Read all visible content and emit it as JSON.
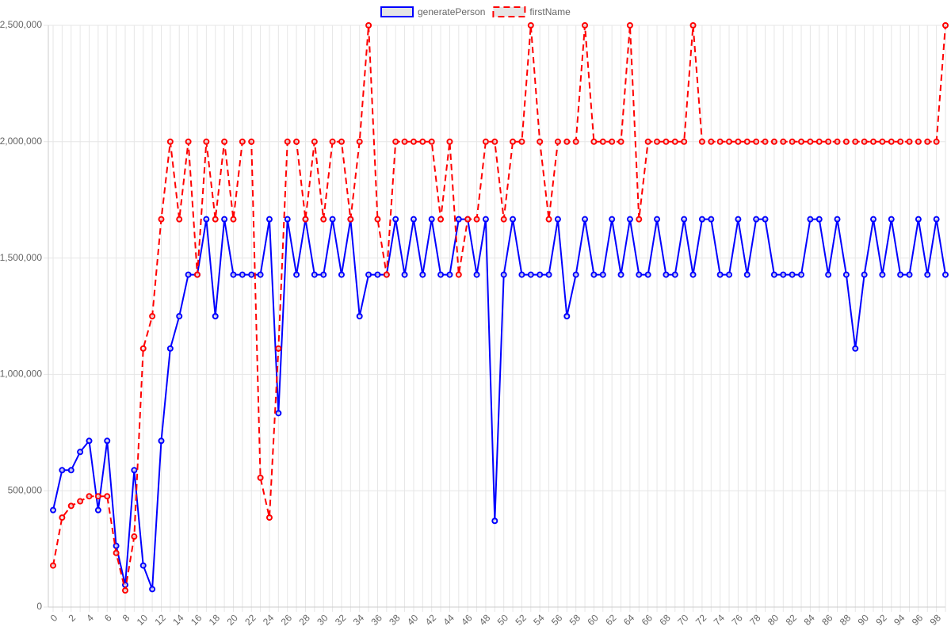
{
  "chart_data": {
    "type": "line",
    "categories": [
      0,
      null,
      2,
      null,
      4,
      null,
      6,
      null,
      8,
      null,
      10,
      null,
      12,
      null,
      14,
      null,
      16,
      null,
      18,
      null,
      20,
      null,
      22,
      null,
      24,
      null,
      26,
      null,
      28,
      null,
      30,
      null,
      32,
      null,
      34,
      null,
      36,
      null,
      38,
      null,
      40,
      null,
      42,
      null,
      44,
      null,
      46,
      null,
      48,
      null,
      50,
      null,
      52,
      null,
      54,
      null,
      56,
      null,
      58,
      null,
      60,
      null,
      62,
      null,
      64,
      null,
      66,
      null,
      68,
      null,
      70,
      null,
      72,
      null,
      74,
      null,
      76,
      null,
      78,
      null,
      80,
      null,
      82,
      null,
      84,
      null,
      86,
      null,
      88,
      null,
      90,
      null,
      92,
      null,
      94,
      null,
      96,
      null,
      98,
      null
    ],
    "series": [
      {
        "name": "generatePerson",
        "color": "#0000ff",
        "dashed": false,
        "values": [
          416667,
          588235,
          588235,
          666667,
          714286,
          416667,
          714286,
          263158,
          95238,
          588235,
          178571,
          76923,
          714286,
          1111111,
          1250000,
          1428571,
          1428571,
          1666667,
          1250000,
          1666667,
          1428571,
          1428571,
          1428571,
          1428571,
          1666667,
          833333,
          1666667,
          1428571,
          1666667,
          1428571,
          1428571,
          1666667,
          1428571,
          1666667,
          1250000,
          1428571,
          1428571,
          1428571,
          1666667,
          1428571,
          1666667,
          1428571,
          1666667,
          1428571,
          1428571,
          1666667,
          1666667,
          1428571,
          1666667,
          370370,
          1428571,
          1666667,
          1428571,
          1428571,
          1428571,
          1428571,
          1666667,
          1250000,
          1428571,
          1666667,
          1428571,
          1428571,
          1666667,
          1428571,
          1666667,
          1428571,
          1428571,
          1666667,
          1428571,
          1428571,
          1666667,
          1428571,
          1666667,
          1666667,
          1428571,
          1428571,
          1666667,
          1428571,
          1666667,
          1666667,
          1428571,
          1428571,
          1428571,
          1428571,
          1666667,
          1666667,
          1428571,
          1666667,
          1428571,
          1111111,
          1428571,
          1666667,
          1428571,
          1666667,
          1428571,
          1428571,
          1666667,
          1428571,
          1666667,
          1428571
        ]
      },
      {
        "name": "firstName",
        "color": "#ff0000",
        "dashed": true,
        "values": [
          178571,
          384615,
          434783,
          454545,
          476190,
          476190,
          476190,
          232558,
          71429,
          303030,
          1111111,
          1250000,
          1666667,
          2000000,
          1666667,
          2000000,
          1428571,
          2000000,
          1666667,
          2000000,
          1666667,
          2000000,
          2000000,
          555556,
          384615,
          1111111,
          2000000,
          2000000,
          1666667,
          2000000,
          1666667,
          2000000,
          2000000,
          1666667,
          2000000,
          2500000,
          1666667,
          1428571,
          2000000,
          2000000,
          2000000,
          2000000,
          2000000,
          1666667,
          2000000,
          1428571,
          1666667,
          1666667,
          2000000,
          2000000,
          1666667,
          2000000,
          2000000,
          2500000,
          2000000,
          1666667,
          2000000,
          2000000,
          2000000,
          2500000,
          2000000,
          2000000,
          2000000,
          2000000,
          2500000,
          1666667,
          2000000,
          2000000,
          2000000,
          2000000,
          2000000,
          2500000,
          2000000,
          2000000,
          2000000,
          2000000,
          2000000,
          2000000,
          2000000,
          2000000,
          2000000,
          2000000,
          2000000,
          2000000,
          2000000,
          2000000,
          2000000,
          2000000,
          2000000,
          2000000,
          2000000,
          2000000,
          2000000,
          2000000,
          2000000,
          2000000,
          2000000,
          2000000,
          2000000,
          2500000
        ]
      }
    ],
    "ylim": [
      0,
      2500000
    ],
    "yticks": [
      0,
      {
        "value": 500000,
        "label": "500,000"
      },
      {
        "value": 1000000,
        "label": "1,000,000"
      },
      {
        "value": 1500000,
        "label": "1,500,000"
      },
      {
        "value": 2000000,
        "label": "2,000,000"
      },
      {
        "value": 2500000,
        "label": "2,500,000"
      }
    ],
    "grid": true,
    "legend": "top"
  }
}
